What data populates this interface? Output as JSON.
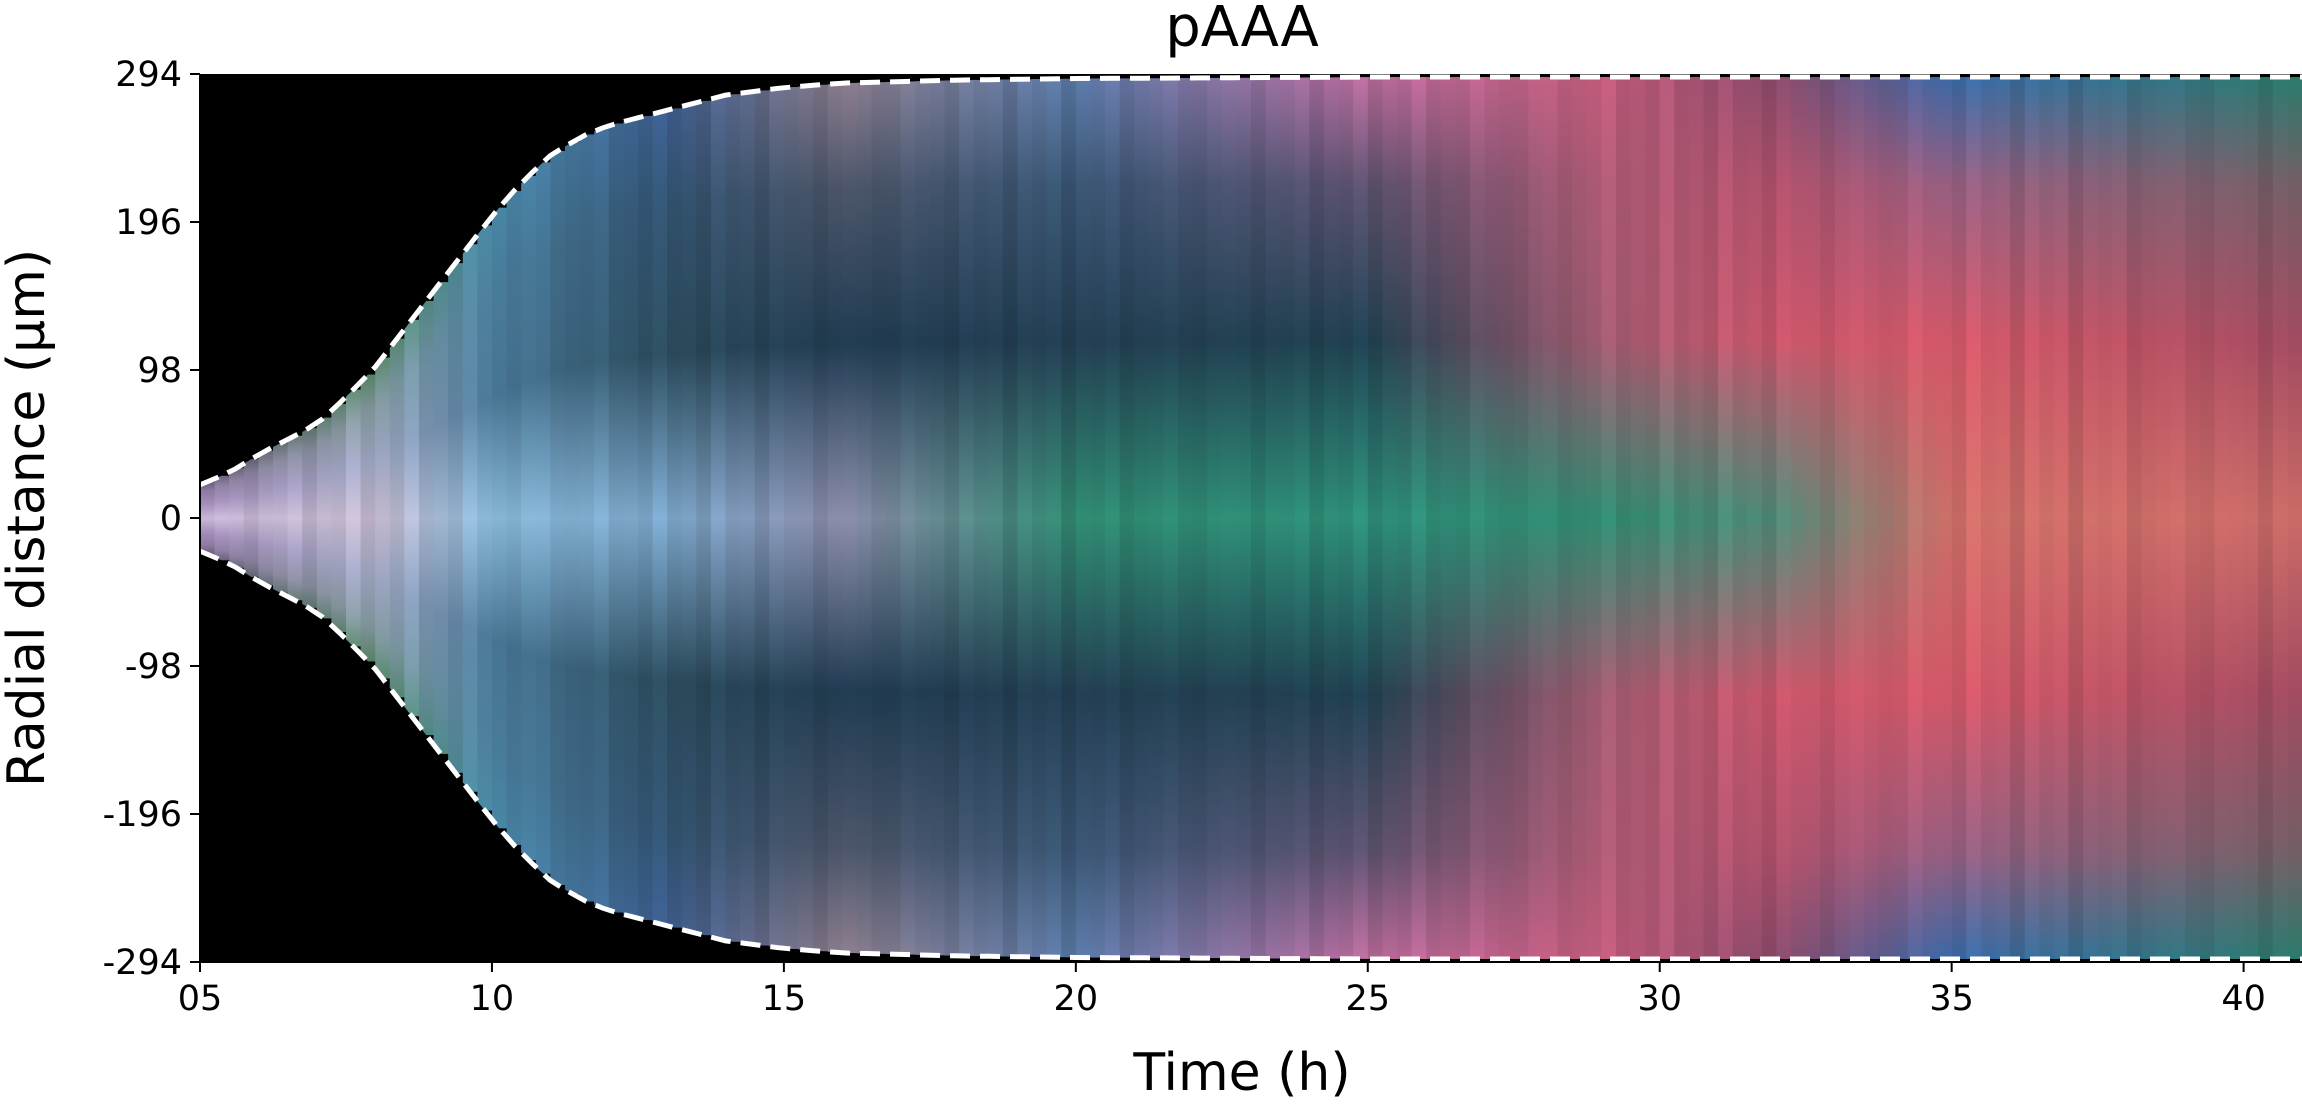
{
  "chart_data": {
    "type": "heatmap",
    "title": "pAAA",
    "xlabel": "Time (h)",
    "ylabel": "Radial distance (μm)",
    "xlim": [
      5,
      41
    ],
    "ylim": [
      -294,
      294
    ],
    "x_ticks": [
      5,
      10,
      15,
      20,
      25,
      30,
      35,
      40
    ],
    "x_tick_labels": [
      "05",
      "10",
      "15",
      "20",
      "25",
      "30",
      "35",
      "40"
    ],
    "y_ticks": [
      294,
      196,
      98,
      0,
      -98,
      -196,
      -294
    ],
    "y_tick_labels": [
      "294",
      "196",
      "98",
      "0",
      "-98",
      "-196",
      "-294"
    ],
    "background_color": "#000000",
    "colony_boundary": {
      "style": "white dashed",
      "time": [
        5,
        5.5,
        6,
        6.5,
        7,
        7.5,
        8,
        8.5,
        9,
        9.5,
        10,
        10.5,
        11,
        11.5,
        12,
        13,
        14,
        15,
        16,
        18,
        20,
        25,
        30,
        35,
        41
      ],
      "radius": [
        22,
        30,
        42,
        52,
        62,
        80,
        100,
        125,
        150,
        175,
        200,
        222,
        240,
        252,
        260,
        270,
        280,
        285,
        288,
        290,
        291,
        292,
        292,
        292,
        292
      ]
    },
    "color_keyframes": [
      {
        "time": 5,
        "center": "#c8b8d8",
        "mid": "#a48cb8",
        "edge": "#6a5a7a"
      },
      {
        "time": 8,
        "center": "#c4b8cc",
        "mid": "#a0a8c4",
        "edge": "#5a8a6a"
      },
      {
        "time": 10,
        "center": "#88b8d8",
        "mid": "#4a7898",
        "edge": "#4a8aa8"
      },
      {
        "time": 13,
        "center": "#7aa4c8",
        "mid": "#2a4a5a",
        "edge": "#3a5a8a"
      },
      {
        "time": 16,
        "center": "#8a8aa8",
        "mid": "#203a50",
        "edge": "#8a7a8a"
      },
      {
        "time": 20,
        "center": "#2f8a70",
        "mid": "#233e52",
        "edge": "#5a7aa8"
      },
      {
        "time": 25,
        "center": "#2d8e78",
        "mid": "#1f4050",
        "edge": "#b86a9a"
      },
      {
        "time": 29,
        "center": "#2f8a70",
        "mid": "#a05a70",
        "edge": "#c05a7a"
      },
      {
        "time": 32,
        "center": "#4e8a78",
        "mid": "#c8556a",
        "edge": "#8a4a6a"
      },
      {
        "time": 35,
        "center": "#cf6f68",
        "mid": "#d45868",
        "edge": "#3a6aa8"
      },
      {
        "time": 41,
        "center": "#c96a66",
        "mid": "#a04a60",
        "edge": "#2a7a6a"
      }
    ]
  }
}
